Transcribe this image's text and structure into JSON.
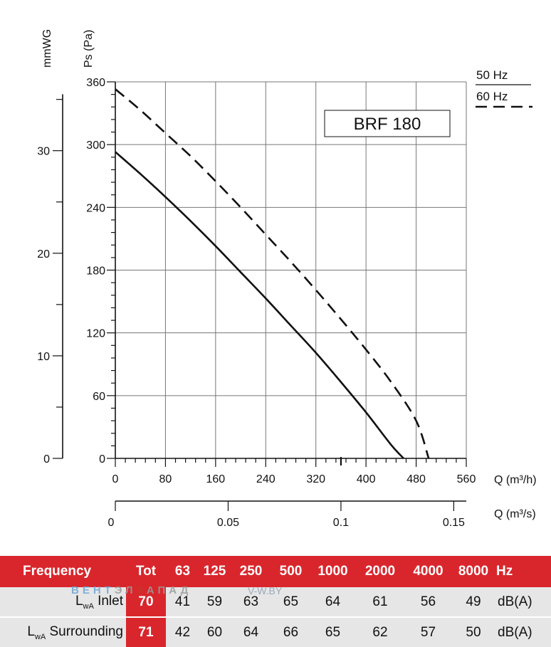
{
  "chart_data": {
    "type": "line",
    "title": "BRF 180",
    "xlabel": "Q (m³/h)",
    "x2label": "Q (m³/s)",
    "ylabel": "Ps (Pa)",
    "y2label": "mmWG",
    "xlim": [
      0,
      560
    ],
    "ylim": [
      0,
      360
    ],
    "x_ticks": [
      "0",
      "80",
      "160",
      "240",
      "320",
      "400",
      "480",
      "560"
    ],
    "x_tick_values": [
      0,
      80,
      160,
      240,
      320,
      400,
      480,
      560
    ],
    "y_ticks": [
      "0",
      "60",
      "120",
      "180",
      "240",
      "300",
      "360"
    ],
    "y_tick_values": [
      0,
      60,
      120,
      180,
      240,
      300,
      360
    ],
    "x2_ticks": [
      "0",
      "0.05",
      "0.1",
      "0.15"
    ],
    "x2_tick_values": [
      0,
      0.05,
      0.1,
      0.15
    ],
    "y2_ticks": [
      "0",
      "10",
      "20",
      "30"
    ],
    "y2_tick_values": [
      0,
      10,
      20,
      30
    ],
    "grid": true,
    "legend_position": "top-right",
    "series": [
      {
        "name": "50 Hz",
        "style": "solid",
        "x": [
          0,
          40,
          80,
          120,
          160,
          200,
          240,
          280,
          320,
          360,
          400,
          440,
          460
        ],
        "y": [
          293,
          272,
          250,
          227,
          203,
          178,
          153,
          127,
          101,
          73,
          44,
          13,
          0
        ]
      },
      {
        "name": "60 Hz",
        "style": "dashed",
        "x": [
          0,
          40,
          80,
          120,
          160,
          200,
          240,
          280,
          320,
          360,
          400,
          440,
          480,
          500
        ],
        "y": [
          353,
          333,
          311,
          289,
          265,
          240,
          214,
          188,
          161,
          133,
          104,
          73,
          36,
          0
        ]
      }
    ]
  },
  "table": {
    "header": {
      "label": "Frequency",
      "tot": "Tot",
      "bands": [
        "63",
        "125",
        "250",
        "500",
        "1000",
        "2000",
        "4000",
        "8000"
      ],
      "unit": "Hz"
    },
    "rows": [
      {
        "label_main": "L",
        "label_sub": "wA",
        "label_rest": " Inlet",
        "tot": "70",
        "values": [
          "41",
          "59",
          "63",
          "65",
          "64",
          "61",
          "56",
          "49"
        ],
        "unit": "dB(A)"
      },
      {
        "label_main": "L",
        "label_sub": "wA",
        "label_rest": " Surrounding",
        "tot": "71",
        "values": [
          "42",
          "60",
          "64",
          "66",
          "65",
          "62",
          "57",
          "50"
        ],
        "unit": "dB(A)"
      }
    ]
  },
  "watermark": {
    "part1": "ВЕНТ",
    "part2": "ЭЛ",
    "part3": "З",
    "part4": "АПАД",
    "site": "V-W.BY"
  },
  "colors": {
    "table_red": "#d9262c",
    "table_grey": "#e6e6e6",
    "grid": "#777777",
    "curve": "#111111"
  }
}
